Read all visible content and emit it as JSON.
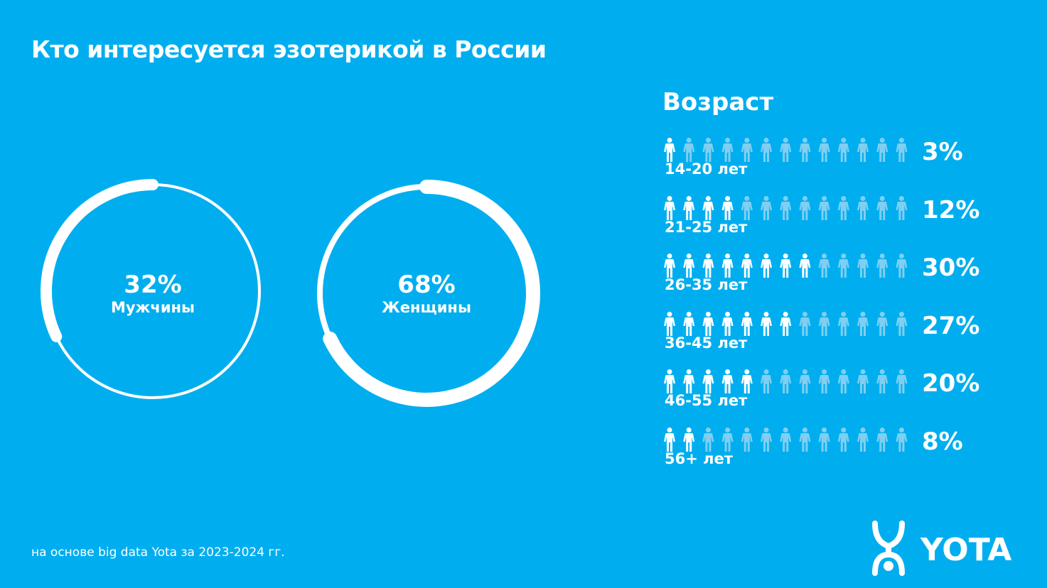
{
  "title": "Кто интересуется эзотерикой в России",
  "colors": {
    "background": "#00aeef",
    "filled": "#ffffff",
    "empty": "#80cff2"
  },
  "chart_data": [
    {
      "type": "pie",
      "subtype": "donut-rings",
      "series": [
        {
          "name": "Мужчины",
          "value": 32,
          "label": "32%"
        },
        {
          "name": "Женщины",
          "value": 68,
          "label": "68%"
        }
      ]
    },
    {
      "type": "bar",
      "subtype": "pictogram",
      "title": "Возраст",
      "icons_per_row": 13,
      "icon": "person-icon",
      "categories": [
        "14-20 лет",
        "21-25 лет",
        "26-35 лет",
        "36-45 лет",
        "46-55 лет",
        "56+ лет"
      ],
      "values": [
        3,
        12,
        30,
        27,
        20,
        8
      ],
      "labels": [
        "3%",
        "12%",
        "30%",
        "27%",
        "20%",
        "8%"
      ],
      "filled_icons": [
        1,
        4,
        8,
        7,
        5,
        2
      ]
    }
  ],
  "source": "на основе big data Yota за 2023-2024 гг.",
  "logo": "YOTA"
}
